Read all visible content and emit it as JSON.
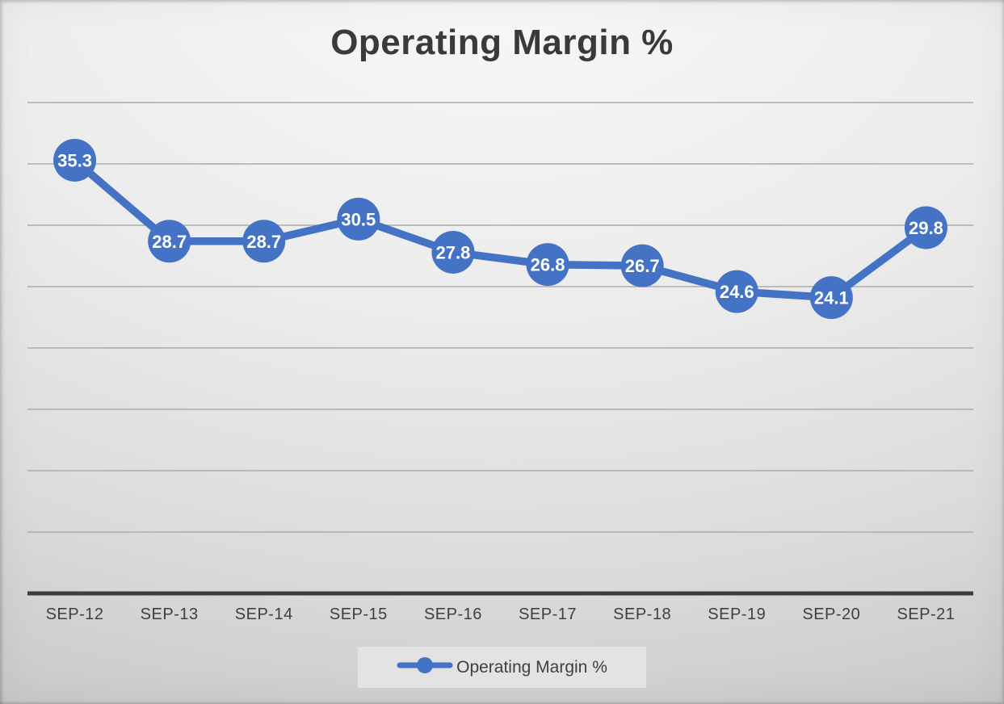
{
  "chart": {
    "title": "Operating Margin %",
    "legend_label": "Operating Margin %"
  },
  "chart_data": {
    "type": "line",
    "title": "Operating Margin %",
    "categories": [
      "SEP-12",
      "SEP-13",
      "SEP-14",
      "SEP-15",
      "SEP-16",
      "SEP-17",
      "SEP-18",
      "SEP-19",
      "SEP-20",
      "SEP-21"
    ],
    "series": [
      {
        "name": "Operating Margin %",
        "values": [
          35.3,
          28.7,
          28.7,
          30.5,
          27.8,
          26.8,
          26.7,
          24.6,
          24.1,
          29.8
        ]
      }
    ],
    "xlabel": "",
    "ylabel": "",
    "ylim": [
      0,
      40
    ],
    "y_gridline_interval": 5,
    "grid": "horizontal",
    "y_tick_labels_visible": false,
    "data_labels": true,
    "data_label_decimals": 1,
    "legend_position": "bottom",
    "colors": {
      "series": "#4472C4",
      "data_label_text": "#FFFFFF",
      "gridline": "#ACACAC",
      "axis_line": "#3C3C3C",
      "axis_text": "#3F3F3F",
      "title_text": "#3A3A3A",
      "legend_fill": "#E3E3E3",
      "legend_text": "#3F3F3F"
    }
  }
}
